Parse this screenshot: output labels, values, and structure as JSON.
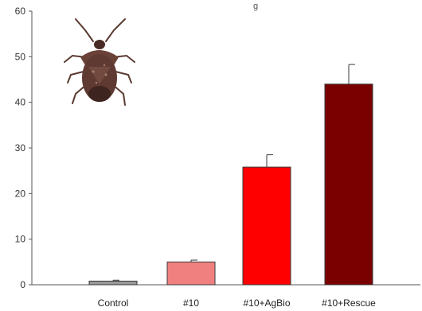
{
  "chart_data": {
    "type": "bar",
    "title_fragment": "g",
    "categories": [
      "Control",
      "#10",
      "#10+AgBio",
      "#10+Rescue"
    ],
    "values": [
      0.8,
      5.0,
      25.8,
      44.0
    ],
    "errors": [
      0.2,
      0.4,
      2.7,
      4.3
    ],
    "colors": [
      "#999999",
      "#f08080",
      "#ff0000",
      "#7a0000"
    ],
    "xlabel": "",
    "ylabel": "",
    "ylim": [
      0,
      60
    ],
    "yticks": [
      "0",
      "10",
      "20",
      "30",
      "40",
      "50",
      "60"
    ],
    "grid": false,
    "legend": "none",
    "insect_image": "stink-bug"
  }
}
